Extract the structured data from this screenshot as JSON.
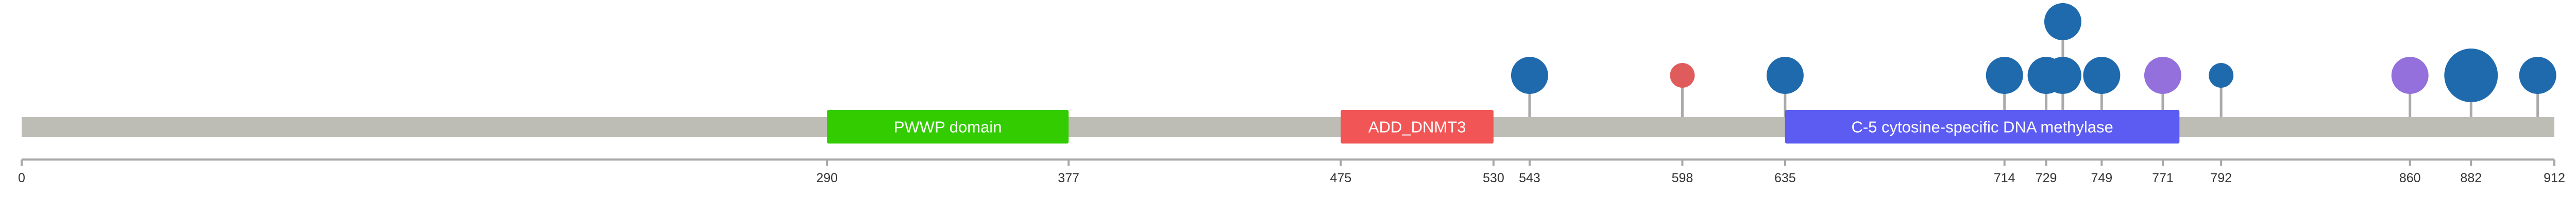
{
  "chart_data": {
    "type": "lollipop",
    "protein_length": 912,
    "axis": {
      "min": 0,
      "max": 912,
      "tick_labels": [
        "0",
        "290",
        "377",
        "475",
        "530",
        "543",
        "598",
        "635",
        "714",
        "729",
        "749",
        "771",
        "792",
        "860",
        "882",
        "912"
      ]
    },
    "domains": [
      {
        "name": "PWWP domain",
        "start": 290,
        "end": 377,
        "color": "#33cc00"
      },
      {
        "name": "ADD_DNMT3",
        "start": 475,
        "end": 530,
        "color": "#f25555"
      },
      {
        "name": "C-5 cytosine-specific DNA methylase",
        "start": 635,
        "end": 777,
        "color": "#5c5cf2"
      }
    ],
    "mutations": [
      {
        "position": 543,
        "level": 1,
        "size": 3,
        "color": "#1f6aad"
      },
      {
        "position": 598,
        "level": 1,
        "size": 2,
        "color": "#e05c5c"
      },
      {
        "position": 635,
        "level": 1,
        "size": 3,
        "color": "#1f6aad"
      },
      {
        "position": 714,
        "level": 1,
        "size": 3,
        "color": "#1f6aad"
      },
      {
        "position": 729,
        "level": 1,
        "size": 3,
        "color": "#1f6aad"
      },
      {
        "position": 735,
        "level": 1,
        "size": 3,
        "color": "#1f6aad"
      },
      {
        "position": 735,
        "level": 2,
        "size": 3,
        "color": "#1f6aad"
      },
      {
        "position": 749,
        "level": 1,
        "size": 3,
        "color": "#1f6aad"
      },
      {
        "position": 771,
        "level": 1,
        "size": 3,
        "color": "#9370db"
      },
      {
        "position": 792,
        "level": 1,
        "size": 2,
        "color": "#1f6aad"
      },
      {
        "position": 860,
        "level": 1,
        "size": 3,
        "color": "#9370db"
      },
      {
        "position": 882,
        "level": 1,
        "size": 5,
        "color": "#1f6aad"
      },
      {
        "position": 906,
        "level": 1,
        "size": 3,
        "color": "#1f6aad"
      }
    ],
    "backbone_color": "#bdbdb5",
    "stem_color": "#aaaaaa"
  }
}
